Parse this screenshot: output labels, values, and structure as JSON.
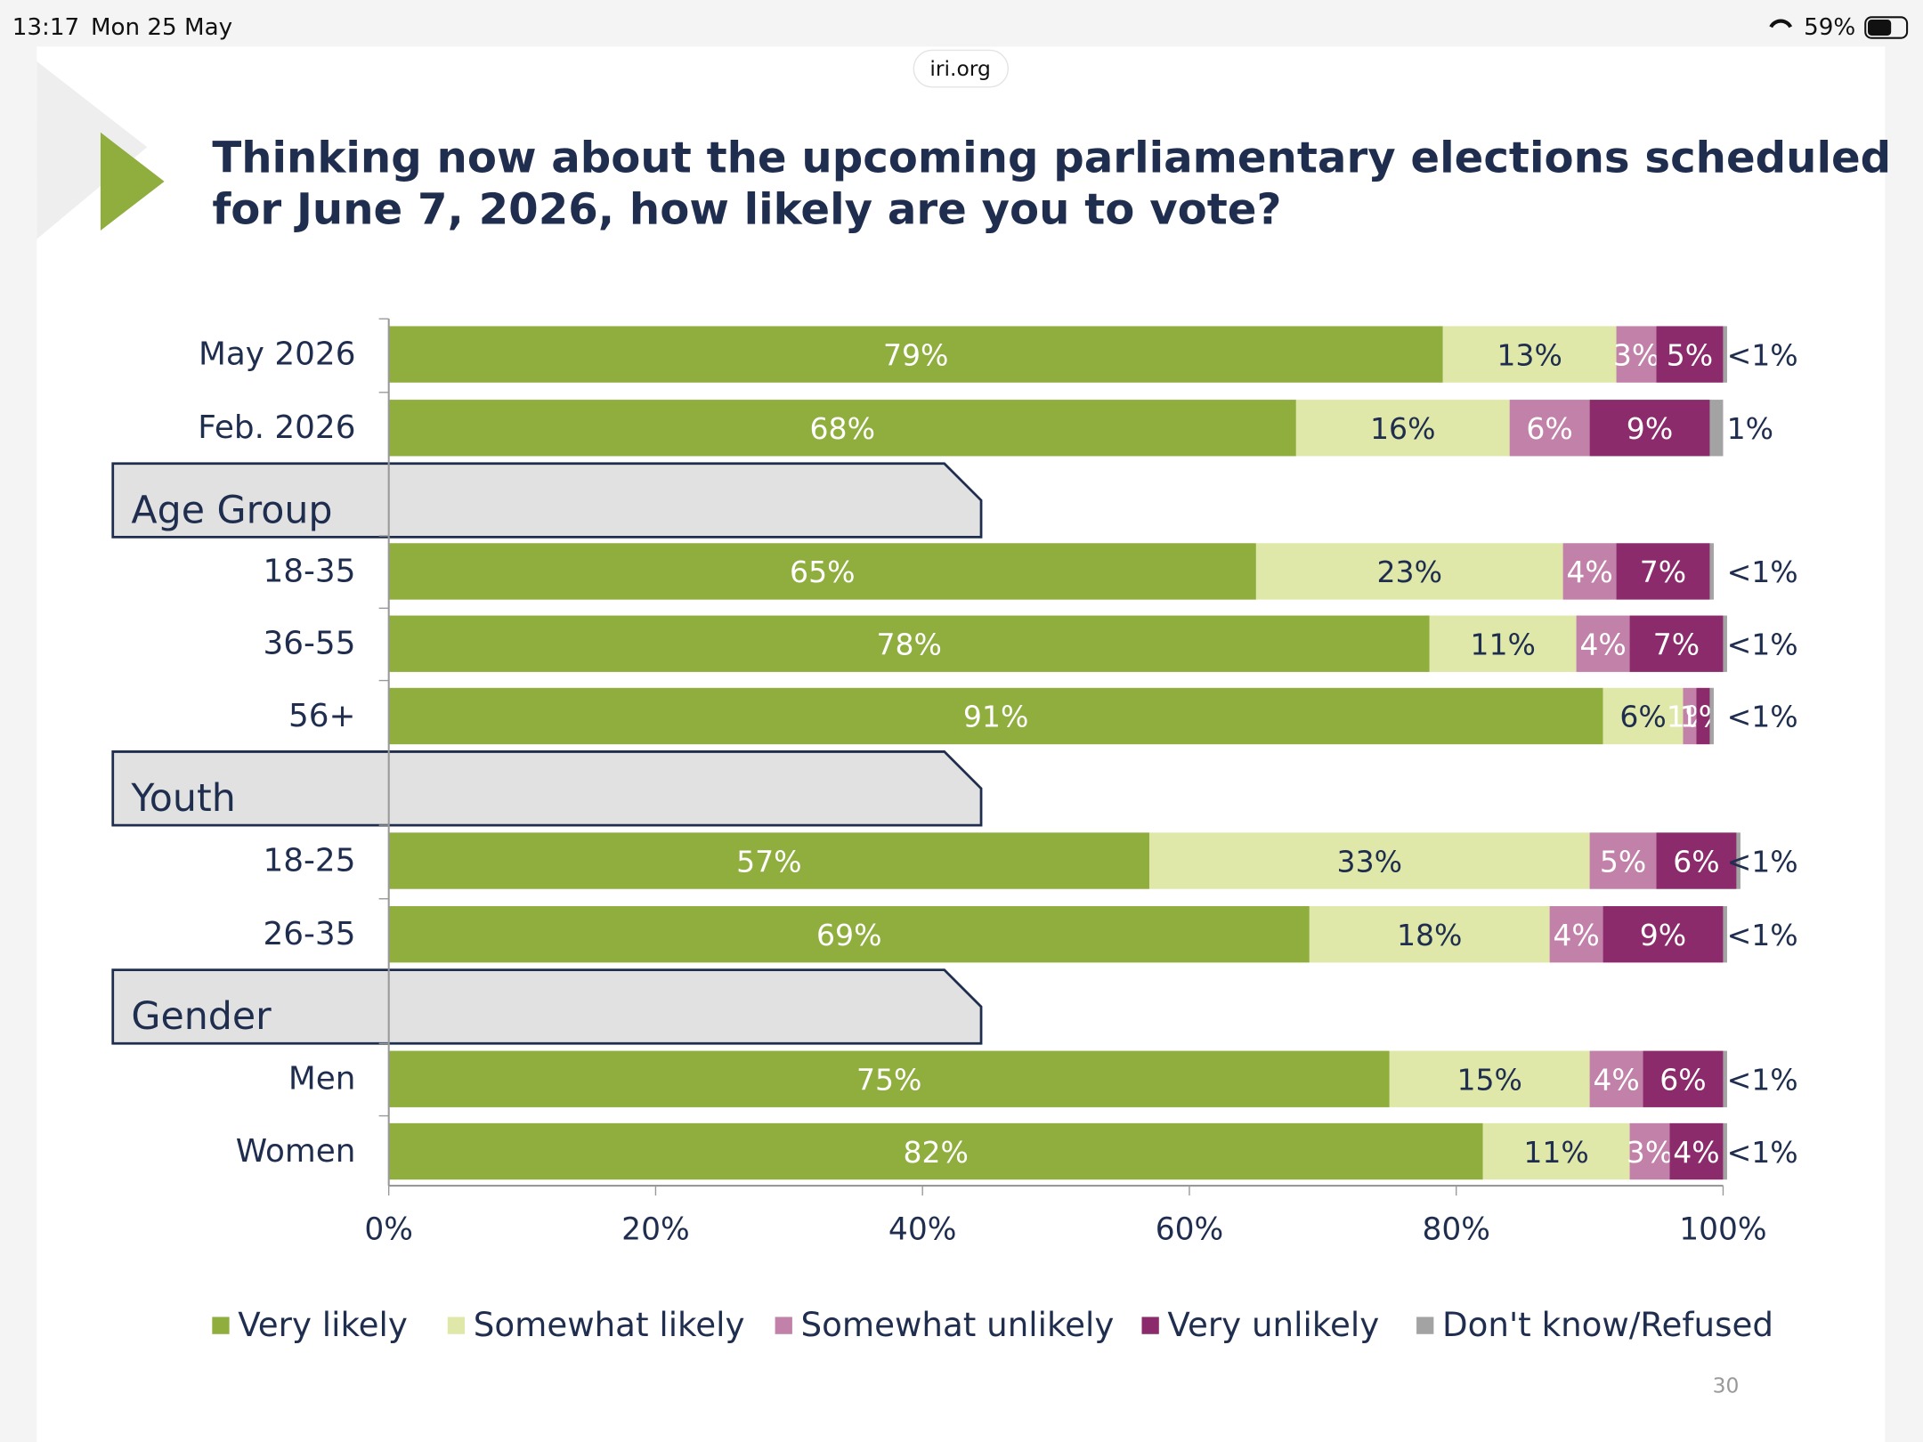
{
  "status_bar": {
    "time": "13:17",
    "date": "Mon 25 May",
    "battery": "59%",
    "url": "iri.org"
  },
  "page_number": "30",
  "chart_data": {
    "type": "stacked-bar-horizontal",
    "title": [
      "Thinking now about the upcoming parliamentary elections scheduled",
      "for June 7, 2026, how likely are you to vote?"
    ],
    "categories": [
      "May 2026",
      "Feb. 2026",
      "18-35",
      "36-55",
      "56+",
      "18-25",
      "26-35",
      "Men",
      "Women"
    ],
    "group_headers": [
      "Age Group",
      "Youth",
      "Gender"
    ],
    "series": [
      {
        "name": "Very likely",
        "color": "#8fae3e",
        "values": [
          79,
          68,
          65,
          78,
          91,
          57,
          69,
          75,
          82
        ],
        "value_labels": [
          "79%",
          "68%",
          "65%",
          "78%",
          "91%",
          "57%",
          "69%",
          "75%",
          "82%"
        ]
      },
      {
        "name": "Somewhat likely",
        "color": "#dfe8a9",
        "values": [
          13,
          16,
          23,
          11,
          6,
          33,
          18,
          15,
          11
        ],
        "value_labels": [
          "13%",
          "16%",
          "23%",
          "11%",
          "6%",
          "33%",
          "18%",
          "15%",
          "11%"
        ]
      },
      {
        "name": "Somewhat unlikely",
        "color": "#c181a9",
        "values": [
          3,
          6,
          4,
          4,
          1,
          5,
          4,
          4,
          3
        ],
        "value_labels": [
          "3%",
          "6%",
          "4%",
          "4%",
          "1%",
          "5%",
          "4%",
          "4%",
          "3%"
        ]
      },
      {
        "name": "Very unlikely",
        "color": "#8b2b6b",
        "values": [
          5,
          9,
          7,
          7,
          1,
          6,
          9,
          6,
          4
        ],
        "value_labels": [
          "5%",
          "9%",
          "7%",
          "7%",
          "1%",
          "6%",
          "9%",
          "6%",
          "4%"
        ]
      },
      {
        "name": "Don't know/Refused",
        "color": "#a3a3a3",
        "values": [
          0.3,
          1,
          0.3,
          0.3,
          0.3,
          0.3,
          0.3,
          0.3,
          0.3
        ],
        "value_labels": [
          "<1%",
          "1%",
          "<1%",
          "<1%",
          "<1%",
          "<1%",
          "<1%",
          "<1%",
          "<1%"
        ]
      }
    ],
    "xlim": [
      0,
      100
    ],
    "xticks": [
      {
        "value": 0,
        "label": "0%"
      },
      {
        "value": 20,
        "label": "20%"
      },
      {
        "value": 40,
        "label": "40%"
      },
      {
        "value": 60,
        "label": "60%"
      },
      {
        "value": 80,
        "label": "80%"
      },
      {
        "value": 100,
        "label": "100%"
      }
    ],
    "legend": "bottom"
  }
}
